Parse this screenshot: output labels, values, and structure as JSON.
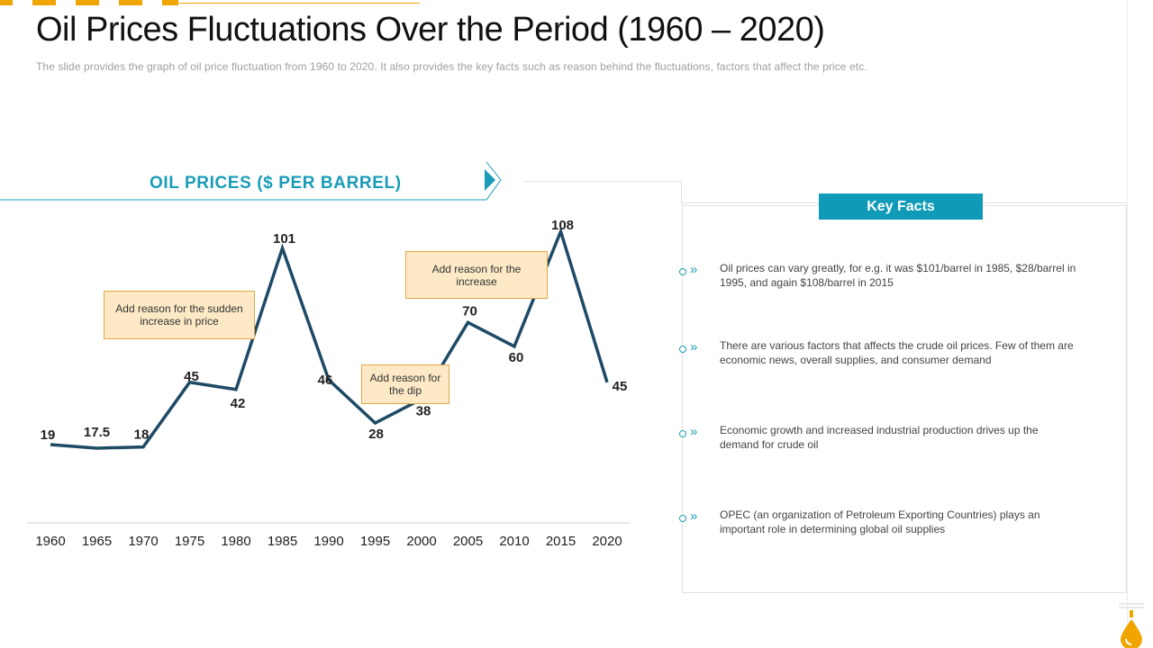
{
  "title": "Oil Prices Fluctuations Over the Period (1960 – 2020)",
  "subtitle": "The slide provides  the graph  of oil price fluctuation from 1960 to 2020. It also provides  the key facts such as reason behind the fluctuations,  factors that affect the price etc.",
  "chart_heading": "OIL PRICES ($ PER BARREL)",
  "chart_data": {
    "type": "line",
    "title": "OIL PRICES ($ PER BARREL)",
    "categories": [
      "1960",
      "1965",
      "1970",
      "1975",
      "1980",
      "1985",
      "1990",
      "1995",
      "2000",
      "2005",
      "2010",
      "2015",
      "2020"
    ],
    "values": [
      19,
      17.5,
      18,
      45,
      42,
      101,
      46,
      28,
      38,
      70,
      60,
      108,
      45
    ],
    "value_labels": [
      "19",
      "17.5",
      "18",
      "45",
      "42",
      "101",
      "46",
      "28",
      "38",
      "70",
      "60",
      "108",
      "45"
    ],
    "line_color": "#1e4a66",
    "ylim": [
      0,
      120
    ],
    "grid": false,
    "annotations": [
      {
        "text": "Add reason for the sudden increase in price"
      },
      {
        "text": "Add reason for the dip"
      },
      {
        "text": "Add reason for the increase"
      }
    ]
  },
  "key_facts": {
    "header": "Key Facts",
    "items": [
      {
        "text": "Oil prices can vary  greatly,  for e.g.  it was $101/barrel  in 1985, $28/barrel  in 1995,  and again $108/barrel  in 2015"
      },
      {
        "text": "There are various  factors that affects the crude oil prices. Few of them are economic news,  overall  supplies,  and consumer demand"
      },
      {
        "text": "Economic growth and increased industrial production drives up the demand for crude oil"
      },
      {
        "text": "OPEC (an organization of Petroleum Exporting Countries) plays an important role in determining global oil supplies"
      }
    ]
  },
  "colors": {
    "accent_orange": "#f0a500",
    "accent_teal": "#0f9bb8",
    "line": "#1e4a66",
    "callout_fill": "#fde9c6",
    "callout_border": "#e2a847"
  },
  "icons": {
    "bullet": "chevron-right-icon",
    "brand": "oil-drop-icon"
  }
}
